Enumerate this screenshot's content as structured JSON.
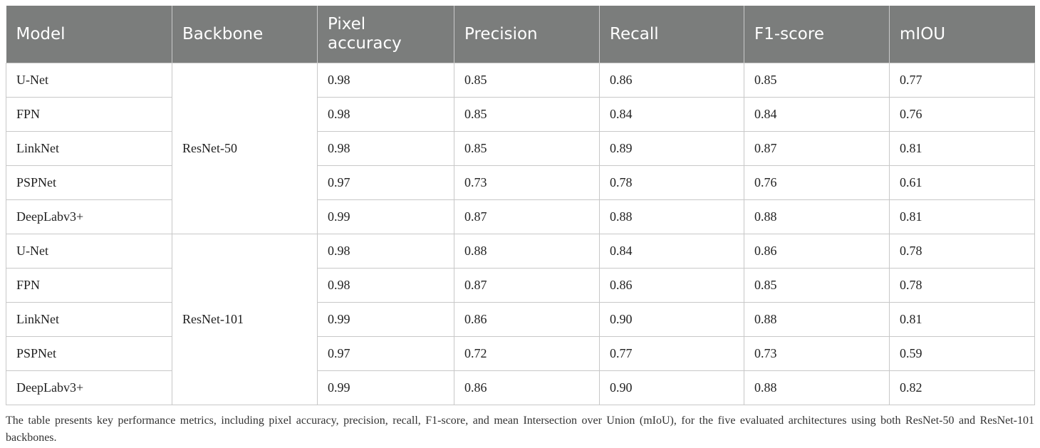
{
  "table": {
    "headers": [
      "Model",
      "Backbone",
      "Pixel accuracy",
      "Precision",
      "Recall",
      "F1-score",
      "mIOU"
    ],
    "groups": [
      {
        "backbone": "ResNet-50",
        "rows": [
          {
            "model": "U-Net",
            "pixel_accuracy": "0.98",
            "precision": "0.85",
            "recall": "0.86",
            "f1": "0.85",
            "miou": "0.77"
          },
          {
            "model": "FPN",
            "pixel_accuracy": "0.98",
            "precision": "0.85",
            "recall": "0.84",
            "f1": "0.84",
            "miou": "0.76"
          },
          {
            "model": "LinkNet",
            "pixel_accuracy": "0.98",
            "precision": "0.85",
            "recall": "0.89",
            "f1": "0.87",
            "miou": "0.81"
          },
          {
            "model": "PSPNet",
            "pixel_accuracy": "0.97",
            "precision": "0.73",
            "recall": "0.78",
            "f1": "0.76",
            "miou": "0.61"
          },
          {
            "model": "DeepLabv3+",
            "pixel_accuracy": "0.99",
            "precision": "0.87",
            "recall": "0.88",
            "f1": "0.88",
            "miou": "0.81"
          }
        ]
      },
      {
        "backbone": "ResNet-101",
        "rows": [
          {
            "model": "U-Net",
            "pixel_accuracy": "0.98",
            "precision": "0.88",
            "recall": "0.84",
            "f1": "0.86",
            "miou": "0.78"
          },
          {
            "model": "FPN",
            "pixel_accuracy": "0.98",
            "precision": "0.87",
            "recall": "0.86",
            "f1": "0.85",
            "miou": "0.78"
          },
          {
            "model": "LinkNet",
            "pixel_accuracy": "0.99",
            "precision": "0.86",
            "recall": "0.90",
            "f1": "0.88",
            "miou": "0.81"
          },
          {
            "model": "PSPNet",
            "pixel_accuracy": "0.97",
            "precision": "0.72",
            "recall": "0.77",
            "f1": "0.73",
            "miou": "0.59"
          },
          {
            "model": "DeepLabv3+",
            "pixel_accuracy": "0.99",
            "precision": "0.86",
            "recall": "0.90",
            "f1": "0.88",
            "miou": "0.82"
          }
        ]
      }
    ]
  },
  "caption": "The table presents key performance metrics, including pixel accuracy, precision, recall, F1-score, and mean Intersection over Union (mIoU), for the five evaluated architectures using both ResNet-50 and ResNet-101 backbones."
}
